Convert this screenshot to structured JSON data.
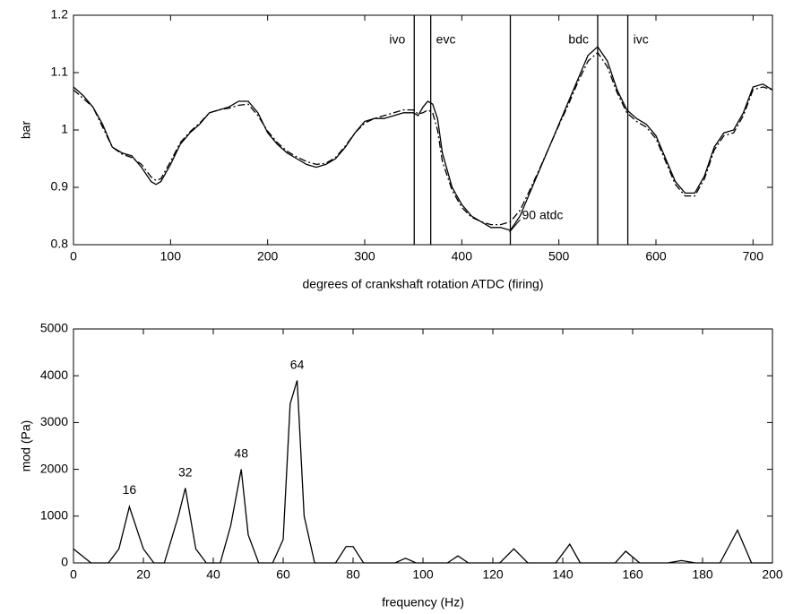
{
  "chart_data": [
    {
      "type": "line",
      "xlabel": "degrees of crankshaft rotation ATDC (firing)",
      "ylabel": "bar",
      "xlim": [
        0,
        720
      ],
      "ylim": [
        0.8,
        1.2
      ],
      "xticks": [
        0,
        100,
        200,
        300,
        400,
        500,
        600,
        700
      ],
      "yticks": [
        0.8,
        0.9,
        1,
        1.1,
        1.2
      ],
      "x": [
        0,
        10,
        20,
        30,
        40,
        50,
        60,
        70,
        80,
        85,
        90,
        100,
        110,
        120,
        130,
        140,
        150,
        160,
        170,
        180,
        190,
        200,
        210,
        220,
        230,
        240,
        250,
        260,
        270,
        280,
        290,
        300,
        310,
        320,
        330,
        340,
        350,
        355,
        360,
        365,
        370,
        375,
        380,
        390,
        400,
        410,
        420,
        430,
        440,
        450,
        460,
        470,
        480,
        490,
        500,
        510,
        520,
        530,
        540,
        550,
        560,
        570,
        580,
        590,
        600,
        610,
        620,
        630,
        640,
        650,
        660,
        670,
        680,
        690,
        700,
        710,
        720
      ],
      "series": [
        {
          "color": "#000000",
          "style": "solid",
          "values": [
            1.075,
            1.06,
            1.04,
            1.01,
            0.97,
            0.96,
            0.955,
            0.935,
            0.91,
            0.905,
            0.91,
            0.94,
            0.975,
            0.995,
            1.01,
            1.03,
            1.035,
            1.04,
            1.05,
            1.05,
            1.03,
            0.995,
            0.975,
            0.96,
            0.95,
            0.94,
            0.935,
            0.94,
            0.95,
            0.97,
            0.995,
            1.015,
            1.02,
            1.02,
            1.025,
            1.03,
            1.03,
            1.025,
            1.04,
            1.05,
            1.045,
            1.02,
            0.96,
            0.9,
            0.87,
            0.85,
            0.84,
            0.83,
            0.83,
            0.825,
            0.85,
            0.89,
            0.93,
            0.97,
            1.01,
            1.05,
            1.09,
            1.13,
            1.145,
            1.12,
            1.07,
            1.035,
            1.02,
            1.01,
            0.99,
            0.95,
            0.91,
            0.89,
            0.89,
            0.92,
            0.97,
            0.995,
            1.0,
            1.03,
            1.075,
            1.08,
            1.07
          ]
        },
        {
          "color": "#000000",
          "style": "dash-dot",
          "values": [
            1.07,
            1.055,
            1.04,
            1.005,
            0.97,
            0.958,
            0.952,
            0.94,
            0.918,
            0.912,
            0.915,
            0.945,
            0.978,
            0.997,
            1.012,
            1.03,
            1.035,
            1.038,
            1.043,
            1.045,
            1.025,
            0.998,
            0.978,
            0.963,
            0.953,
            0.945,
            0.94,
            0.942,
            0.952,
            0.972,
            0.995,
            1.012,
            1.02,
            1.025,
            1.03,
            1.035,
            1.035,
            1.028,
            1.03,
            1.035,
            1.03,
            1.0,
            0.945,
            0.895,
            0.865,
            0.848,
            0.84,
            0.835,
            0.835,
            0.84,
            0.86,
            0.895,
            0.932,
            0.97,
            1.008,
            1.045,
            1.085,
            1.12,
            1.135,
            1.11,
            1.065,
            1.03,
            1.015,
            1.005,
            0.985,
            0.945,
            0.905,
            0.885,
            0.885,
            0.915,
            0.965,
            0.99,
            0.995,
            1.025,
            1.07,
            1.075,
            1.07
          ]
        }
      ],
      "vlines": [
        {
          "x": 351,
          "label": "ivo",
          "side": "left"
        },
        {
          "x": 368,
          "label": "evc",
          "side": "right"
        },
        {
          "x": 450,
          "label": null,
          "side": null
        },
        {
          "x": 540,
          "label": "bdc",
          "side": "left"
        },
        {
          "x": 571,
          "label": "ivc",
          "side": "right"
        }
      ],
      "annotations": [
        {
          "text": "90 atdc",
          "x": 462,
          "y": 0.85
        }
      ]
    },
    {
      "type": "line",
      "xlabel": "frequency (Hz)",
      "ylabel": "mod (Pa)",
      "xlim": [
        0,
        200
      ],
      "ylim": [
        0,
        5000
      ],
      "xticks": [
        0,
        20,
        40,
        60,
        80,
        100,
        120,
        140,
        160,
        180,
        200
      ],
      "yticks": [
        0,
        1000,
        2000,
        3000,
        4000,
        5000
      ],
      "x": [
        0,
        5,
        10,
        13,
        16,
        20,
        23,
        26,
        28,
        30,
        32,
        35,
        38,
        42,
        45,
        48,
        50,
        53,
        57,
        60,
        62,
        64,
        66,
        69,
        75,
        78,
        80,
        83,
        92,
        95,
        98,
        107,
        110,
        113,
        122,
        126,
        130,
        138,
        142,
        145,
        155,
        158,
        162,
        170,
        174,
        178,
        185,
        190,
        194,
        200
      ],
      "series": [
        {
          "color": "#000000",
          "style": "solid",
          "values": [
            300,
            0,
            0,
            300,
            1200,
            300,
            0,
            0,
            500,
            1000,
            1600,
            300,
            0,
            0,
            800,
            2000,
            600,
            0,
            0,
            500,
            3400,
            3900,
            1000,
            0,
            0,
            350,
            350,
            0,
            0,
            100,
            0,
            0,
            150,
            0,
            0,
            300,
            0,
            0,
            400,
            0,
            0,
            250,
            0,
            0,
            50,
            0,
            0,
            700,
            0,
            0
          ]
        }
      ],
      "annotations": [
        {
          "text": "16",
          "x": 16,
          "y": 1550
        },
        {
          "text": "32",
          "x": 32,
          "y": 1915
        },
        {
          "text": "48",
          "x": 48,
          "y": 2320
        },
        {
          "text": "64",
          "x": 64,
          "y": 4215
        }
      ]
    }
  ]
}
